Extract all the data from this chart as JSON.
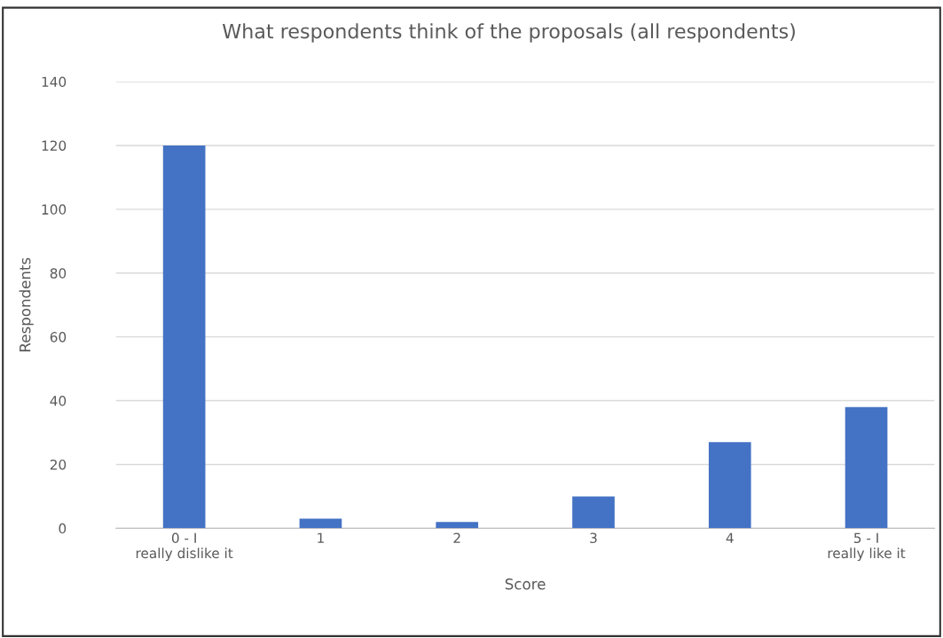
{
  "chart_data": {
    "type": "bar",
    "title": "What respondents think of the proposals (all respondents)",
    "xlabel": "Score",
    "ylabel": "Respondents",
    "categories": [
      "0 - I really dislike it",
      "1",
      "2",
      "3",
      "4",
      "5 - I really like it"
    ],
    "values": [
      120,
      3,
      2,
      10,
      27,
      38
    ],
    "color": "#4472c4",
    "ylim": [
      0,
      140
    ],
    "yticks": [
      0,
      20,
      40,
      60,
      80,
      100,
      120,
      140
    ],
    "grid": "y"
  }
}
